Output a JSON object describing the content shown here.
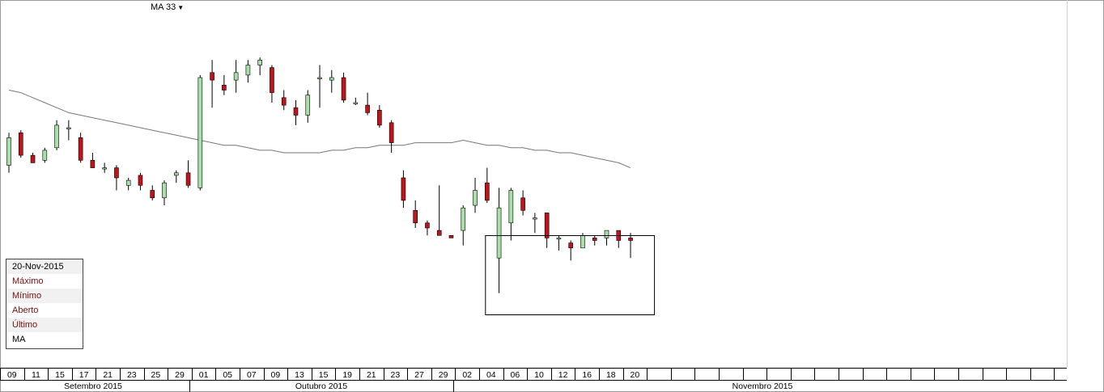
{
  "indicator_menu": {
    "label": "MA 33"
  },
  "info_panel": {
    "date": "20-Nov-2015",
    "rows": [
      {
        "label": "Máximo",
        "value": ""
      },
      {
        "label": "Mínimo",
        "value": ""
      },
      {
        "label": "Aberto",
        "value": ""
      },
      {
        "label": "Último",
        "value": ""
      }
    ],
    "ma_label": "MA",
    "ma_value": ""
  },
  "colors": {
    "up": "#a8e0a8",
    "down": "#c0131a",
    "ma_line": "#777777",
    "grid": "#000000"
  },
  "chart_data": {
    "type": "candlestick",
    "x_tick_labels": [
      "09",
      "11",
      "15",
      "17",
      "21",
      "23",
      "25",
      "29",
      "01",
      "05",
      "07",
      "09",
      "13",
      "15",
      "19",
      "21",
      "23",
      "27",
      "29",
      "02",
      "04",
      "06",
      "10",
      "12",
      "16",
      "18",
      "20"
    ],
    "month_labels": [
      "Setembro 2015",
      "Outubro 2015",
      "Novembro 2015"
    ],
    "y_scale": "unlabeled (relative price)",
    "candles": [
      {
        "o": 30,
        "h": 43,
        "l": 27,
        "c": 41
      },
      {
        "o": 43,
        "h": 44,
        "l": 33,
        "c": 34
      },
      {
        "o": 34,
        "h": 35,
        "l": 31,
        "c": 31
      },
      {
        "o": 32,
        "h": 37,
        "l": 31,
        "c": 36
      },
      {
        "o": 37,
        "h": 48,
        "l": 36,
        "c": 46
      },
      {
        "o": 45,
        "h": 48,
        "l": 40,
        "c": 45
      },
      {
        "o": 41,
        "h": 43,
        "l": 31,
        "c": 32
      },
      {
        "o": 32,
        "h": 35,
        "l": 29,
        "c": 29
      },
      {
        "o": 29,
        "h": 31,
        "l": 27,
        "c": 29
      },
      {
        "o": 29,
        "h": 30,
        "l": 20,
        "c": 25
      },
      {
        "o": 22,
        "h": 25,
        "l": 20,
        "c": 24
      },
      {
        "o": 26,
        "h": 27,
        "l": 20,
        "c": 22
      },
      {
        "o": 20,
        "h": 22,
        "l": 16,
        "c": 17
      },
      {
        "o": 17,
        "h": 24,
        "l": 14,
        "c": 23
      },
      {
        "o": 26,
        "h": 28,
        "l": 23,
        "c": 27
      },
      {
        "o": 27,
        "h": 32,
        "l": 21,
        "c": 22
      },
      {
        "o": 21,
        "h": 66,
        "l": 20,
        "c": 65
      },
      {
        "o": 67,
        "h": 72,
        "l": 53,
        "c": 64
      },
      {
        "o": 62,
        "h": 66,
        "l": 58,
        "c": 60
      },
      {
        "o": 64,
        "h": 72,
        "l": 59,
        "c": 67
      },
      {
        "o": 66,
        "h": 72,
        "l": 63,
        "c": 70
      },
      {
        "o": 70,
        "h": 73,
        "l": 66,
        "c": 72
      },
      {
        "o": 69,
        "h": 70,
        "l": 55,
        "c": 59
      },
      {
        "o": 57,
        "h": 60,
        "l": 52,
        "c": 54
      },
      {
        "o": 53,
        "h": 56,
        "l": 46,
        "c": 50
      },
      {
        "o": 50,
        "h": 60,
        "l": 47,
        "c": 58
      },
      {
        "o": 65,
        "h": 70,
        "l": 53,
        "c": 65
      },
      {
        "o": 64,
        "h": 68,
        "l": 59,
        "c": 65
      },
      {
        "o": 65,
        "h": 67,
        "l": 55,
        "c": 56
      },
      {
        "o": 55,
        "h": 57,
        "l": 54,
        "c": 55
      },
      {
        "o": 54,
        "h": 59,
        "l": 50,
        "c": 51
      },
      {
        "o": 52,
        "h": 54,
        "l": 45,
        "c": 46
      },
      {
        "o": 47,
        "h": 48,
        "l": 35,
        "c": 39
      },
      {
        "o": 25,
        "h": 28,
        "l": 13,
        "c": 16
      },
      {
        "o": 12,
        "h": 16,
        "l": 5,
        "c": 7
      },
      {
        "o": 7,
        "h": 8,
        "l": 2,
        "c": 5
      },
      {
        "o": 4,
        "h": 22,
        "l": 2,
        "c": 2
      },
      {
        "o": 2,
        "h": 2,
        "l": 1,
        "c": 1
      },
      {
        "o": 4,
        "h": 14,
        "l": -2,
        "c": 13
      },
      {
        "o": 14,
        "h": 25,
        "l": 11,
        "c": 20
      },
      {
        "o": 23,
        "h": 29,
        "l": 15,
        "c": 16
      },
      {
        "o": -7,
        "h": 21,
        "l": -21,
        "c": 13
      },
      {
        "o": 7,
        "h": 21,
        "l": 0,
        "c": 20
      },
      {
        "o": 17,
        "h": 20,
        "l": 10,
        "c": 12
      },
      {
        "o": 9,
        "h": 11,
        "l": 3,
        "c": 9
      },
      {
        "o": 11,
        "h": 11,
        "l": -3,
        "c": 1
      },
      {
        "o": 1,
        "h": 2,
        "l": -4,
        "c": 1
      },
      {
        "o": -1,
        "h": 0,
        "l": -8,
        "c": -3
      },
      {
        "o": -3,
        "h": 3,
        "l": -3,
        "c": 2
      },
      {
        "o": 1,
        "h": 2,
        "l": -2,
        "c": 0
      },
      {
        "o": 1,
        "h": 4,
        "l": -2,
        "c": 4
      },
      {
        "o": 4,
        "h": 4,
        "l": -3,
        "c": 0
      },
      {
        "o": 1,
        "h": 3,
        "l": -7,
        "c": 0
      }
    ],
    "moving_average": [
      60,
      59,
      57,
      55,
      53,
      51,
      50,
      49,
      48,
      47,
      46,
      45,
      44,
      43,
      42,
      41,
      40,
      39,
      38,
      38,
      37,
      36,
      36,
      35,
      35,
      35,
      35,
      36,
      36,
      37,
      37,
      38,
      38,
      38,
      39,
      39,
      39,
      39,
      40,
      39,
      38,
      38,
      37,
      37,
      36,
      36,
      35,
      35,
      34,
      33,
      32,
      31,
      29
    ],
    "highlight_box": {
      "from_index": 40,
      "to_index": 54
    }
  }
}
